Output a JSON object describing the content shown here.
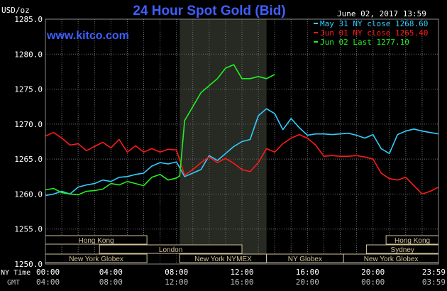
{
  "header": {
    "units": "USD/oz",
    "title": "24 Hour Spot Gold (Bid)",
    "timestamp": "June 02, 2017 13:59",
    "website": "www.kitco.com"
  },
  "legend": [
    {
      "label": "May 31 NY close 1268.60",
      "color": "#33ccff"
    },
    {
      "label": "Jun 01 NY close 1265.40",
      "color": "#ff1a1a"
    },
    {
      "label": "Jun 02 Last 1277.10",
      "color": "#22ee22"
    }
  ],
  "colors": {
    "background": "#000000",
    "plot_grid": "#6e6e6e",
    "highlight_band": "#262a22",
    "text": "#ffffff",
    "title": "#3f5fff",
    "session_box": "#d2c49a"
  },
  "x_axis": {
    "row1_label": "NY Time",
    "row2_label": "GMT",
    "ny_ticks": [
      "00:00",
      "04:00",
      "08:00",
      "12:00",
      "16:00",
      "20:00",
      "23:59"
    ],
    "gmt_ticks": [
      "04:00",
      "08:00",
      "12:00",
      "16:00",
      "20:00",
      "00:00",
      "03:59"
    ]
  },
  "sessions": [
    {
      "label": "Hong Kong",
      "row": 0,
      "start": 0,
      "end": 6.2
    },
    {
      "label": "Hong Kong",
      "row": 0,
      "start": 20.8,
      "end": 24
    },
    {
      "label": "London",
      "row": 1,
      "start": 3.3,
      "end": 12
    },
    {
      "label": "Sydney",
      "row": 1,
      "start": 19.6,
      "end": 24
    },
    {
      "label": "New York Globex",
      "row": 2,
      "start": 0,
      "end": 6.2
    },
    {
      "label": "New York NYMEX",
      "row": 2,
      "start": 8.2,
      "end": 13.5
    },
    {
      "label": "NY Globex",
      "row": 2,
      "start": 13.5,
      "end": 18.2
    },
    {
      "label": "New York Globex",
      "row": 2,
      "start": 18.2,
      "end": 24
    }
  ],
  "chart_data": {
    "type": "line",
    "title": "24 Hour Spot Gold (Bid)",
    "ylabel": "USD/oz",
    "xlabel": "NY Time",
    "x_unit": "hours (NY time)",
    "xlim": [
      0,
      24
    ],
    "ylim": [
      1250,
      1285
    ],
    "yticks": [
      1250.0,
      1255.0,
      1260.0,
      1265.0,
      1270.0,
      1275.0,
      1280.0,
      1285.0
    ],
    "y_tick_labels": [
      "1250.0",
      "1255.0",
      "1260.0",
      "1265.0",
      "1270.0",
      "1275.0",
      "1280.0",
      "1285.0"
    ],
    "highlight_x_range": [
      8.2,
      13.5
    ],
    "grid": true,
    "legend_position": "top-right",
    "series": [
      {
        "name": "May 31 NY close 1268.60",
        "color": "#33ccff",
        "x": [
          0,
          0.5,
          1,
          1.5,
          2,
          2.5,
          3,
          3.5,
          4,
          4.5,
          5,
          5.5,
          6,
          6.5,
          7,
          7.5,
          8,
          8.5,
          9,
          9.5,
          10,
          10.5,
          11,
          11.5,
          12,
          12.5,
          13,
          13.5,
          14,
          14.5,
          15,
          15.5,
          16,
          16.5,
          17,
          17.5,
          18,
          18.5,
          19,
          19.5,
          20,
          20.5,
          21,
          21.5,
          22,
          22.5,
          23,
          23.5,
          24
        ],
        "y": [
          1259.8,
          1260.0,
          1260.4,
          1260.0,
          1261.0,
          1261.3,
          1261.5,
          1262.0,
          1261.8,
          1262.4,
          1262.5,
          1262.8,
          1263.0,
          1264.0,
          1264.5,
          1264.3,
          1264.6,
          1262.5,
          1263.0,
          1263.5,
          1265.5,
          1264.8,
          1265.8,
          1266.8,
          1267.5,
          1267.8,
          1271.2,
          1272.2,
          1271.5,
          1269.2,
          1270.8,
          1269.5,
          1268.4,
          1268.6,
          1268.6,
          1268.5,
          1268.6,
          1268.7,
          1268.4,
          1268.0,
          1268.5,
          1266.5,
          1265.8,
          1268.5,
          1269.0,
          1269.3,
          1269.0,
          1268.8,
          1268.6
        ]
      },
      {
        "name": "Jun 01 NY close 1265.40",
        "color": "#ff1a1a",
        "x": [
          0,
          0.5,
          1,
          1.5,
          2,
          2.5,
          3,
          3.5,
          4,
          4.5,
          5,
          5.5,
          6,
          6.5,
          7,
          7.5,
          8,
          8.5,
          9,
          9.5,
          10,
          10.5,
          11,
          11.5,
          12,
          12.5,
          13,
          13.5,
          14,
          14.5,
          15,
          15.5,
          16,
          16.5,
          17,
          17.5,
          18,
          18.5,
          19,
          19.5,
          20,
          20.5,
          21,
          21.5,
          22,
          22.5,
          23,
          23.5,
          24
        ],
        "y": [
          1268.3,
          1268.8,
          1268.0,
          1267.0,
          1267.2,
          1266.2,
          1266.8,
          1267.4,
          1266.6,
          1267.8,
          1266.0,
          1266.9,
          1266.0,
          1266.5,
          1266.0,
          1266.4,
          1266.3,
          1262.7,
          1263.5,
          1264.5,
          1265.3,
          1264.5,
          1265.1,
          1264.4,
          1263.5,
          1263.2,
          1264.5,
          1266.5,
          1266.0,
          1267.2,
          1268.0,
          1268.5,
          1268.0,
          1267.0,
          1265.4,
          1265.5,
          1265.4,
          1265.4,
          1265.5,
          1265.3,
          1265.0,
          1263.0,
          1262.2,
          1262.0,
          1262.4,
          1261.2,
          1260.0,
          1260.4,
          1261.0
        ]
      },
      {
        "name": "Jun 02 Last 1277.10",
        "color": "#22ee22",
        "x": [
          0,
          0.5,
          1,
          1.5,
          2,
          2.5,
          3,
          3.5,
          4,
          4.5,
          5,
          5.5,
          6,
          6.5,
          7,
          7.5,
          8,
          8.2,
          8.5,
          9,
          9.5,
          10,
          10.5,
          11,
          11.5,
          12,
          12.5,
          13,
          13.5,
          14
        ],
        "y": [
          1260.6,
          1260.8,
          1260.2,
          1260.0,
          1259.9,
          1260.4,
          1260.5,
          1260.7,
          1261.5,
          1261.3,
          1261.8,
          1261.5,
          1261.2,
          1262.4,
          1262.8,
          1262.0,
          1262.3,
          1262.6,
          1270.5,
          1272.5,
          1274.5,
          1275.5,
          1276.5,
          1278.0,
          1278.5,
          1276.5,
          1276.5,
          1276.8,
          1276.5,
          1277.1
        ]
      }
    ]
  }
}
